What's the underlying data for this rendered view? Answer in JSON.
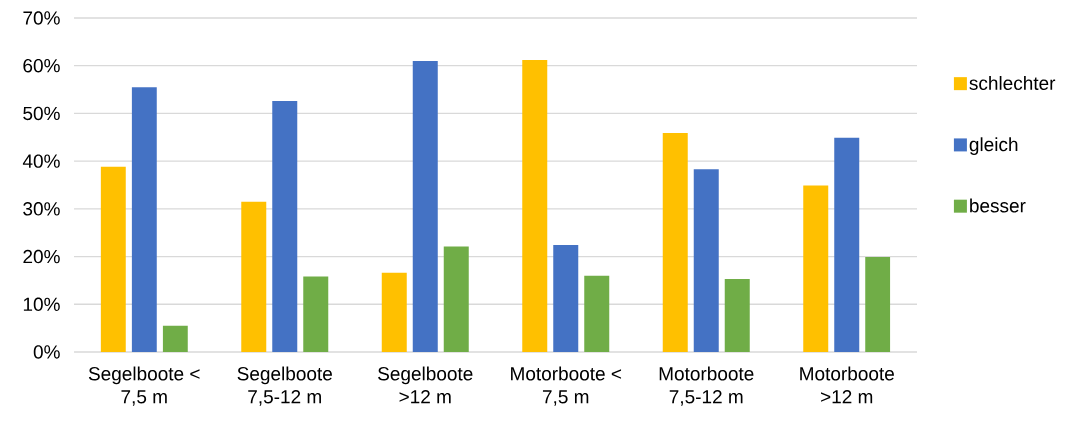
{
  "chart_data": {
    "type": "bar",
    "categories": [
      "Segelboote < 7,5 m",
      "Segelboote 7,5-12 m",
      "Segelboote >12 m",
      "Motorboote < 7,5 m",
      "Motorboote 7,5-12 m",
      "Motorboote >12 m"
    ],
    "series": [
      {
        "name": "schlechter",
        "color": "#ffc000",
        "values": [
          38.8,
          31.5,
          16.6,
          61.2,
          45.9,
          34.9
        ]
      },
      {
        "name": "gleich",
        "color": "#4472c4",
        "values": [
          55.5,
          52.6,
          61.0,
          22.4,
          38.3,
          44.9
        ]
      },
      {
        "name": "besser",
        "color": "#70ad47",
        "values": [
          5.5,
          15.8,
          22.1,
          16.0,
          15.3,
          19.9
        ]
      }
    ],
    "ylim": [
      0,
      70
    ],
    "yticks": [
      {
        "value": 0,
        "label": "0%"
      },
      {
        "value": 10,
        "label": "10%"
      },
      {
        "value": 20,
        "label": "20%"
      },
      {
        "value": 30,
        "label": "30%"
      },
      {
        "value": 40,
        "label": "40%"
      },
      {
        "value": 50,
        "label": "50%"
      },
      {
        "value": 60,
        "label": "60%"
      },
      {
        "value": 70,
        "label": "70%"
      }
    ],
    "grid": "y",
    "legend": "right"
  }
}
